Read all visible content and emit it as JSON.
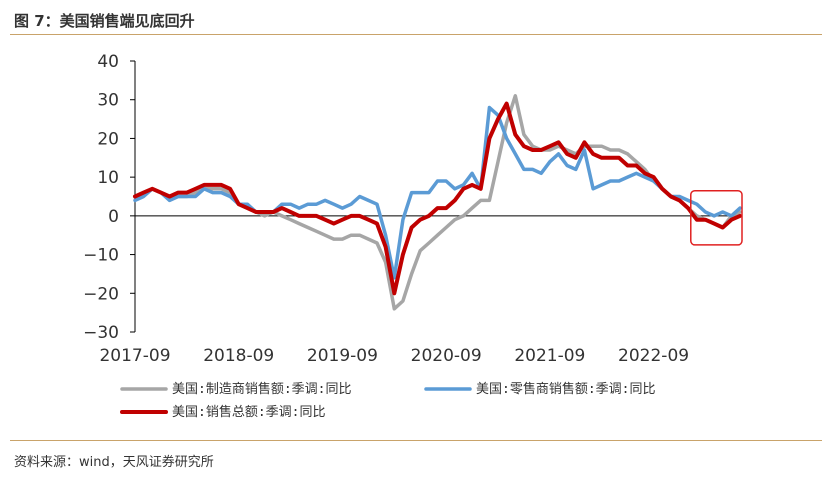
{
  "title": "图 7：美国销售端见底回升",
  "source": "资料来源：wind，天风证券研究所",
  "chart_data": {
    "type": "line",
    "ylim": [
      -30,
      40
    ],
    "yticks": [
      -30,
      -20,
      -10,
      0,
      10,
      20,
      30,
      40
    ],
    "xtick_labels": [
      "2017-09",
      "2018-09",
      "2019-09",
      "2020-09",
      "2021-09",
      "2022-09"
    ],
    "x": [
      "2017-09",
      "2017-10",
      "2017-11",
      "2017-12",
      "2018-01",
      "2018-02",
      "2018-03",
      "2018-04",
      "2018-05",
      "2018-06",
      "2018-07",
      "2018-08",
      "2018-09",
      "2018-10",
      "2018-11",
      "2018-12",
      "2019-01",
      "2019-02",
      "2019-03",
      "2019-04",
      "2019-05",
      "2019-06",
      "2019-07",
      "2019-08",
      "2019-09",
      "2019-10",
      "2019-11",
      "2019-12",
      "2020-01",
      "2020-02",
      "2020-03",
      "2020-04",
      "2020-05",
      "2020-06",
      "2020-07",
      "2020-08",
      "2020-09",
      "2020-10",
      "2020-11",
      "2020-12",
      "2021-01",
      "2021-02",
      "2021-03",
      "2021-04",
      "2021-05",
      "2021-06",
      "2021-07",
      "2021-08",
      "2021-09",
      "2021-10",
      "2021-11",
      "2021-12",
      "2022-01",
      "2022-02",
      "2022-03",
      "2022-04",
      "2022-05",
      "2022-06",
      "2022-07",
      "2022-08",
      "2022-09",
      "2022-10",
      "2022-11",
      "2022-12",
      "2023-01",
      "2023-02",
      "2023-03",
      "2023-04",
      "2023-05",
      "2023-06",
      "2023-07"
    ],
    "series": [
      {
        "name": "美国:制造商销售额:季调:同比",
        "color": "#a6a6a6",
        "values": [
          5,
          6,
          7,
          6,
          5,
          5,
          5,
          6,
          7,
          7,
          7,
          6,
          3,
          2,
          1,
          0,
          1,
          0,
          -1,
          -2,
          -3,
          -4,
          -5,
          -6,
          -6,
          -5,
          -5,
          -6,
          -7,
          -12,
          -24,
          -22,
          -15,
          -9,
          -7,
          -5,
          -3,
          -1,
          0,
          2,
          4,
          4,
          14,
          24,
          31,
          21,
          18,
          17,
          17,
          18,
          17,
          16,
          18,
          18,
          18,
          17,
          17,
          16,
          14,
          12,
          9,
          7,
          5,
          4,
          2,
          0,
          -1,
          -2,
          -3,
          0,
          1
        ]
      },
      {
        "name": "美国:零售商销售额:季调:同比",
        "color": "#5b9bd5",
        "values": [
          4,
          5,
          7,
          6,
          4,
          5,
          5,
          5,
          7,
          6,
          6,
          5,
          3,
          3,
          1,
          1,
          1,
          3,
          3,
          2,
          3,
          3,
          4,
          3,
          2,
          3,
          5,
          4,
          3,
          -5,
          -16,
          -1,
          6,
          6,
          6,
          9,
          9,
          7,
          8,
          11,
          7,
          28,
          26,
          20,
          16,
          12,
          12,
          11,
          14,
          16,
          13,
          12,
          17,
          7,
          8,
          9,
          9,
          10,
          11,
          10,
          9,
          7,
          5,
          5,
          4,
          3,
          1,
          0,
          1,
          0,
          2
        ]
      },
      {
        "name": "美国:销售总额:季调:同比",
        "color": "#c00000",
        "values": [
          5,
          6,
          7,
          6,
          5,
          6,
          6,
          7,
          8,
          8,
          8,
          7,
          3,
          2,
          1,
          1,
          1,
          2,
          1,
          0,
          0,
          0,
          -1,
          -2,
          -1,
          0,
          0,
          -1,
          -2,
          -8,
          -20,
          -10,
          -3,
          -1,
          0,
          2,
          2,
          4,
          7,
          8,
          7,
          20,
          25,
          29,
          21,
          18,
          17,
          17,
          18,
          19,
          16,
          15,
          19,
          16,
          15,
          15,
          15,
          13,
          13,
          11,
          10,
          7,
          5,
          4,
          2,
          -1,
          -1,
          -2,
          -3,
          -1,
          0
        ]
      }
    ],
    "annotation": "red rounded rectangle around latest data"
  }
}
